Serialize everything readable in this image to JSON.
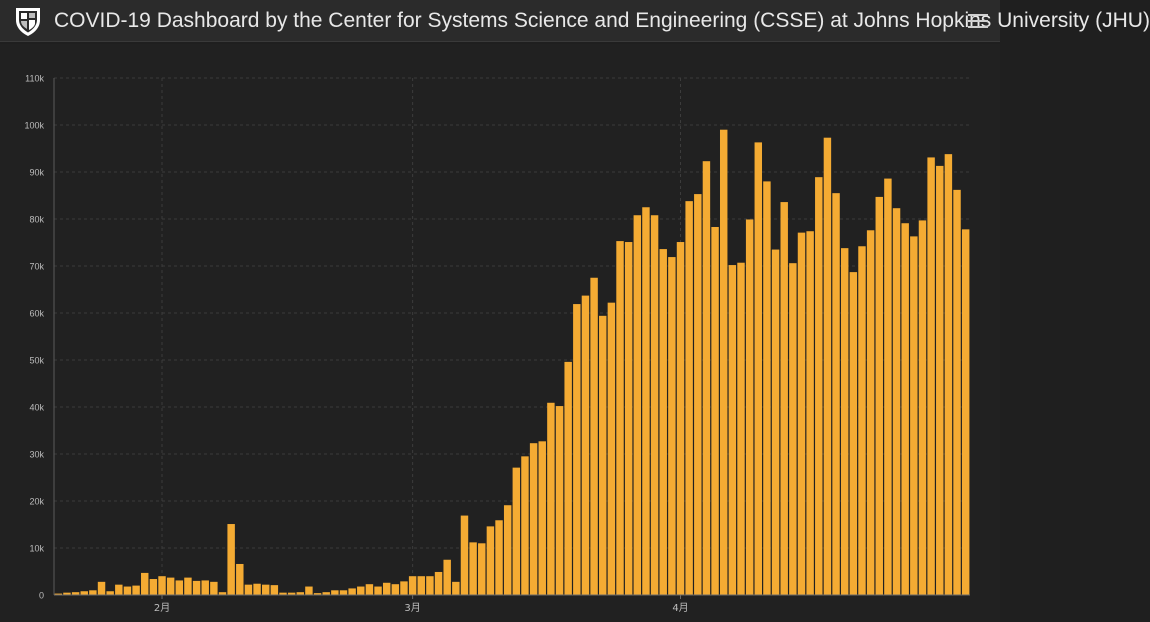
{
  "header": {
    "title": "COVID-19 Dashboard by the Center for Systems Science and Engineering (CSSE) at Johns Hopkins University (JHU)",
    "logo_icon": "jhu-shield-icon",
    "menu_icon": "hamburger-menu-icon"
  },
  "colors": {
    "bar": "#f4ab33",
    "background": "#212121",
    "header": "#2b2b2b",
    "grid": "#3c3c3c",
    "text": "#bdbdbd"
  },
  "chart_data": {
    "type": "bar",
    "title": "",
    "xlabel": "",
    "ylabel": "",
    "ylim": [
      0,
      110000
    ],
    "yticks": [
      "0",
      "10k",
      "20k",
      "30k",
      "40k",
      "50k",
      "60k",
      "70k",
      "80k",
      "90k",
      "100k",
      "110k"
    ],
    "xtick_labels": [
      {
        "label": "2月",
        "index": 9
      },
      {
        "label": "3月",
        "index": 38
      },
      {
        "label": "4月",
        "index": 69
      }
    ],
    "grid": true,
    "values": [
      300,
      500,
      600,
      800,
      1000,
      2800,
      800,
      2200,
      1800,
      2000,
      4700,
      3400,
      4000,
      3700,
      3100,
      3700,
      3000,
      3100,
      2800,
      600,
      15100,
      6600,
      2200,
      2400,
      2200,
      2100,
      500,
      500,
      600,
      1800,
      400,
      600,
      1000,
      1000,
      1400,
      1800,
      2300,
      1800,
      2600,
      2300,
      2900,
      4000,
      4000,
      4000,
      4900,
      7500,
      2800,
      16900,
      11200,
      11000,
      14600,
      15900,
      19100,
      27100,
      29500,
      32300,
      32700,
      40900,
      40200,
      49600,
      61900,
      63700,
      67500,
      59400,
      62200,
      75300,
      75100,
      80800,
      82500,
      80800,
      73600,
      71900,
      75100,
      83800,
      85300,
      92300,
      78300,
      99000,
      70200,
      70700,
      79900,
      96300,
      88000,
      73500,
      83600,
      70600,
      77100,
      77400,
      88900,
      97300,
      85500,
      73800,
      68700,
      74200,
      77600,
      84700,
      88600,
      82300,
      79100,
      76300,
      79700,
      93100,
      91300,
      93800,
      86200,
      77800
    ]
  }
}
